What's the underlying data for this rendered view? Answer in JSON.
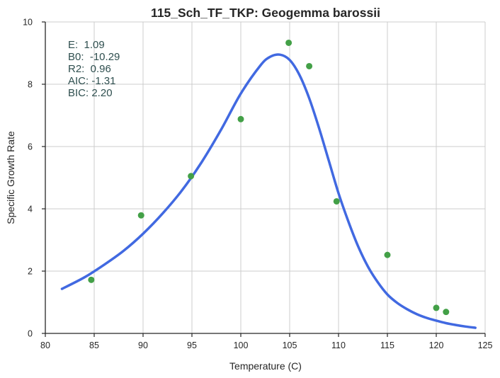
{
  "chart_data": {
    "type": "scatter",
    "title": "115_Sch_TF_TKP: Geogemma barossii",
    "xlabel": "Temperature (C)",
    "ylabel": "Specific Growth Rate",
    "xlim": [
      80,
      125
    ],
    "ylim": [
      0,
      10
    ],
    "x_ticks": [
      80,
      85,
      90,
      95,
      100,
      105,
      110,
      115,
      120,
      125
    ],
    "y_ticks": [
      0,
      2,
      4,
      6,
      8,
      10
    ],
    "grid": true,
    "series": [
      {
        "kind": "points",
        "color": "#43a047",
        "x": [
          84.7,
          89.8,
          94.9,
          100.0,
          104.9,
          107.0,
          109.8,
          115.0,
          120.0,
          121.0
        ],
        "y": [
          1.72,
          3.79,
          5.05,
          6.88,
          9.33,
          8.58,
          4.24,
          2.52,
          0.82,
          0.69
        ]
      },
      {
        "kind": "line",
        "color": "#4169e1",
        "x": [
          81.7,
          84,
          86,
          88,
          90,
          92,
          94,
          96,
          98,
          100,
          102,
          103,
          104,
          105,
          106,
          107,
          108,
          109,
          110,
          111,
          112,
          113,
          114,
          115,
          116,
          117,
          118,
          119,
          120,
          121,
          122,
          123,
          124
        ],
        "y": [
          1.43,
          1.8,
          2.2,
          2.65,
          3.2,
          3.85,
          4.6,
          5.5,
          6.55,
          7.7,
          8.6,
          8.88,
          8.95,
          8.78,
          8.3,
          7.55,
          6.6,
          5.55,
          4.5,
          3.6,
          2.8,
          2.15,
          1.65,
          1.25,
          0.98,
          0.78,
          0.62,
          0.5,
          0.41,
          0.33,
          0.27,
          0.22,
          0.18
        ]
      }
    ],
    "annotations": [
      "E:  1.09",
      "B0:  -10.29",
      "R2:  0.96",
      "AIC: -1.31",
      "BIC: 2.20"
    ]
  }
}
